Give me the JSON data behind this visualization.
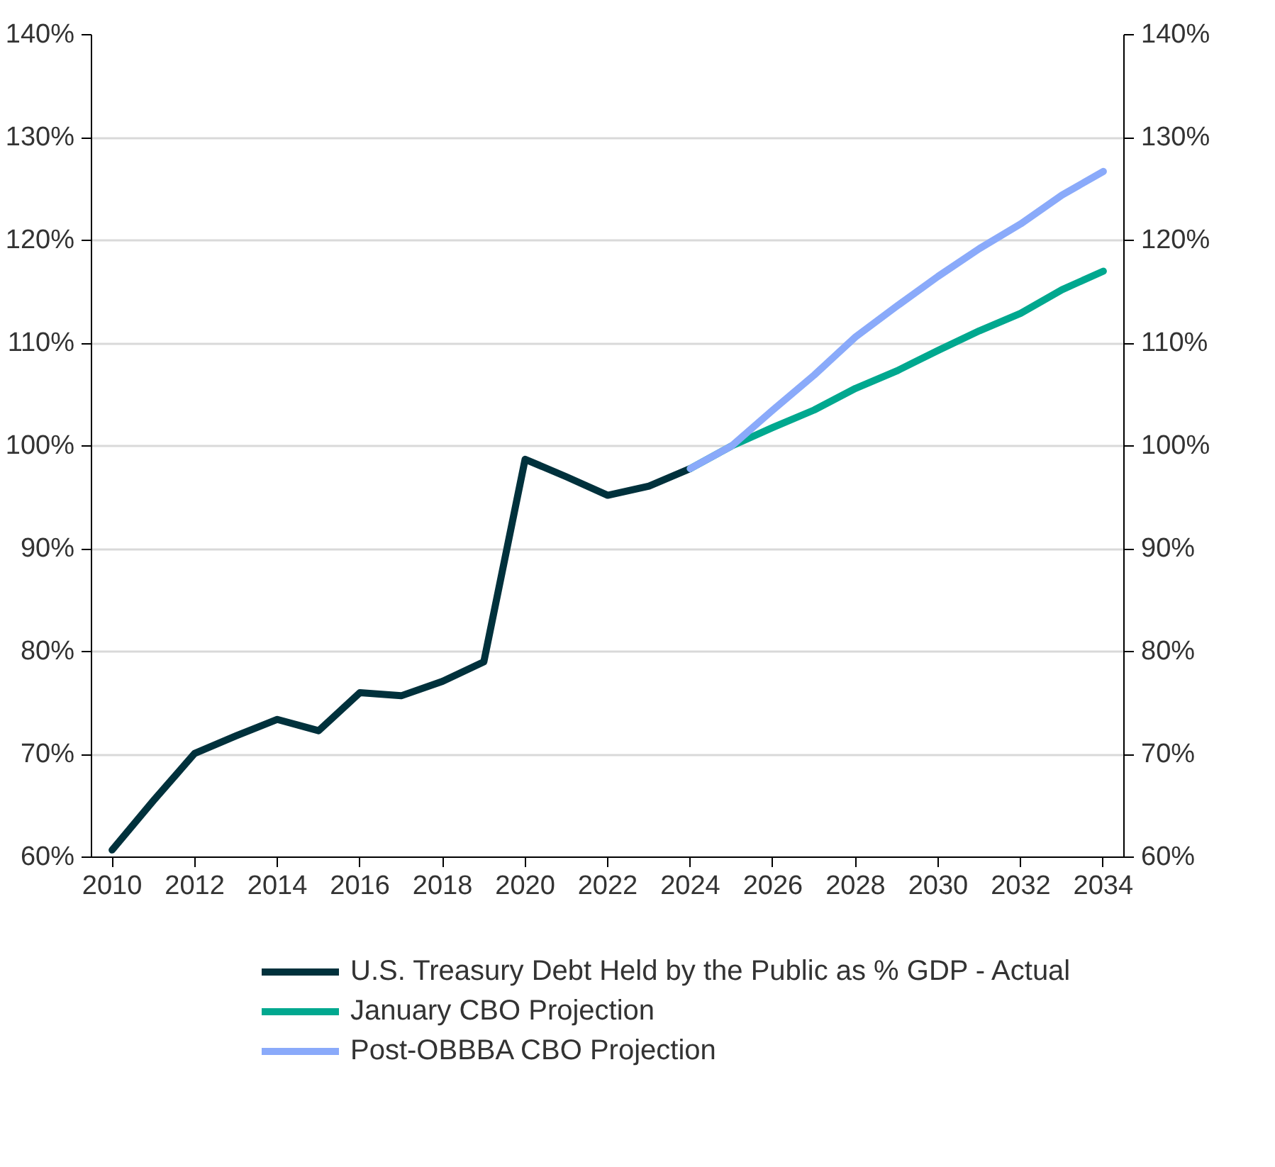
{
  "chart_data": {
    "type": "line",
    "x": [
      2010,
      2011,
      2012,
      2013,
      2014,
      2015,
      2016,
      2017,
      2018,
      2019,
      2020,
      2021,
      2022,
      2023,
      2024,
      2025,
      2026,
      2027,
      2028,
      2029,
      2030,
      2031,
      2032,
      2033,
      2034
    ],
    "series": [
      {
        "name": "U.S. Treasury Debt Held by the Public as % GDP - Actual",
        "color": "#00313c",
        "values": [
          60.7,
          65.5,
          70.1,
          71.8,
          73.4,
          72.3,
          76.0,
          75.7,
          77.1,
          79.0,
          98.7,
          97.0,
          95.2,
          96.1,
          97.8,
          null,
          null,
          null,
          null,
          null,
          null,
          null,
          null,
          null,
          null
        ]
      },
      {
        "name": "January CBO Projection",
        "color": "#00a88f",
        "values": [
          null,
          null,
          null,
          null,
          null,
          null,
          null,
          null,
          null,
          null,
          null,
          null,
          null,
          null,
          97.8,
          100.0,
          101.8,
          103.5,
          105.6,
          107.3,
          109.3,
          111.2,
          112.9,
          115.2,
          117.0
        ]
      },
      {
        "name": "Post-OBBBA CBO Projection",
        "color": "#8aaafa",
        "values": [
          null,
          null,
          null,
          null,
          null,
          null,
          null,
          null,
          null,
          null,
          null,
          null,
          null,
          null,
          97.8,
          100.0,
          103.5,
          106.9,
          110.6,
          113.6,
          116.5,
          119.2,
          121.6,
          124.4,
          126.7
        ]
      }
    ],
    "xlim": [
      2009.5,
      2034.5
    ],
    "xticks": [
      2010,
      2012,
      2014,
      2016,
      2018,
      2020,
      2022,
      2024,
      2026,
      2028,
      2030,
      2032,
      2034
    ],
    "ylim": [
      60,
      140
    ],
    "yticks": [
      {
        "value": 60,
        "label": "60%"
      },
      {
        "value": 70,
        "label": "70%"
      },
      {
        "value": 80,
        "label": "80%"
      },
      {
        "value": 90,
        "label": "90%"
      },
      {
        "value": 100,
        "label": "100%"
      },
      {
        "value": 110,
        "label": "110%"
      },
      {
        "value": 120,
        "label": "120%"
      },
      {
        "value": 130,
        "label": "130%"
      },
      {
        "value": 140,
        "label": "140%"
      }
    ],
    "y2lim": [
      60,
      140
    ],
    "y2ticks": [
      {
        "value": 60,
        "label": "60%"
      },
      {
        "value": 70,
        "label": "70%"
      },
      {
        "value": 80,
        "label": "80%"
      },
      {
        "value": 90,
        "label": "90%"
      },
      {
        "value": 100,
        "label": "100%"
      },
      {
        "value": 110,
        "label": "110%"
      },
      {
        "value": 120,
        "label": "120%"
      },
      {
        "value": 130,
        "label": "130%"
      },
      {
        "value": 140,
        "label": "140%"
      }
    ],
    "grid": "y",
    "legend": "bottom",
    "marker": "none",
    "line_style": "solid"
  }
}
